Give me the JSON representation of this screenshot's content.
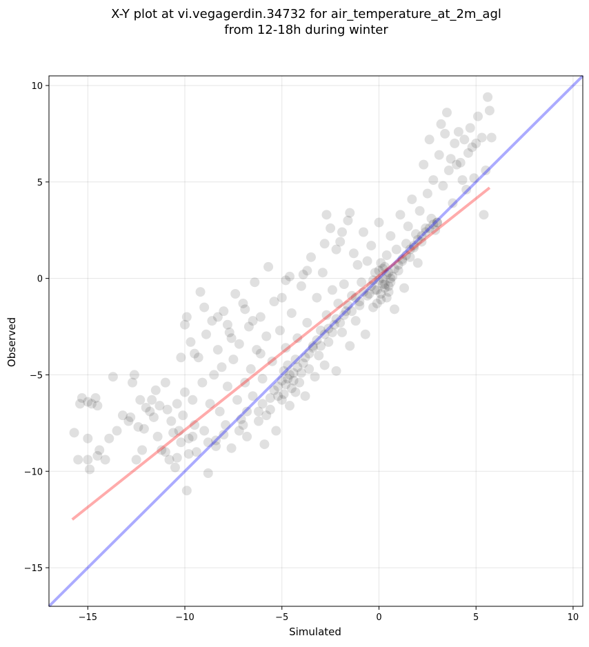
{
  "chart_data": {
    "type": "scatter",
    "title_line1": "X-Y plot at vi.vegagerdin.34732 for air_temperature_at_2m_agl",
    "title_line2": "from 12-18h during winter",
    "xlabel": "Simulated",
    "ylabel": "Observed",
    "xlim": [
      -17,
      10.5
    ],
    "ylim": [
      -17,
      10.5
    ],
    "xticks": [
      -15,
      -10,
      -5,
      0,
      5,
      10
    ],
    "yticks": [
      -15,
      -10,
      -5,
      0,
      5,
      10
    ],
    "xtick_labels": [
      "−15",
      "−10",
      "−5",
      "0",
      "5",
      "10"
    ],
    "ytick_labels": [
      "−15",
      "−10",
      "−5",
      "0",
      "5",
      "10"
    ],
    "grid": true,
    "point_color": "#000000",
    "point_alpha": 0.12,
    "identity_line": {
      "x": [
        -17,
        10.5
      ],
      "y": [
        -17,
        10.5
      ],
      "color": "#0000ff"
    },
    "regression_line": {
      "x": [
        -15.8,
        5.7
      ],
      "y": [
        -12.5,
        4.7
      ],
      "color": "#ff0000"
    },
    "points": [
      [
        -15.7,
        -8.0
      ],
      [
        -15.4,
        -6.5
      ],
      [
        -15.3,
        -6.2
      ],
      [
        -15.0,
        -6.4
      ],
      [
        -14.8,
        -6.5
      ],
      [
        -14.6,
        -6.2
      ],
      [
        -14.5,
        -6.6
      ],
      [
        -15.0,
        -8.3
      ],
      [
        -15.5,
        -9.4
      ],
      [
        -15.0,
        -9.4
      ],
      [
        -14.9,
        -9.9
      ],
      [
        -14.5,
        -9.2
      ],
      [
        -14.4,
        -8.9
      ],
      [
        -14.1,
        -9.4
      ],
      [
        -13.9,
        -8.3
      ],
      [
        -13.7,
        -5.1
      ],
      [
        -13.5,
        -7.9
      ],
      [
        -13.2,
        -7.1
      ],
      [
        -12.9,
        -7.4
      ],
      [
        -12.8,
        -7.2
      ],
      [
        -12.7,
        -5.4
      ],
      [
        -12.6,
        -5.0
      ],
      [
        -12.5,
        -9.4
      ],
      [
        -12.4,
        -7.7
      ],
      [
        -12.3,
        -6.3
      ],
      [
        -12.2,
        -8.9
      ],
      [
        -12.1,
        -7.8
      ],
      [
        -12.0,
        -6.7
      ],
      [
        -11.8,
        -6.9
      ],
      [
        -11.7,
        -6.3
      ],
      [
        -11.6,
        -7.2
      ],
      [
        -11.5,
        -5.8
      ],
      [
        -11.4,
        -8.2
      ],
      [
        -11.3,
        -6.6
      ],
      [
        -11.2,
        -8.9
      ],
      [
        -11.0,
        -5.4
      ],
      [
        -10.9,
        -6.8
      ],
      [
        -10.8,
        -9.4
      ],
      [
        -10.7,
        -7.4
      ],
      [
        -10.6,
        -8.0
      ],
      [
        -10.5,
        -9.8
      ],
      [
        -10.4,
        -6.5
      ],
      [
        -10.3,
        -7.9
      ],
      [
        -10.2,
        -8.5
      ],
      [
        -10.1,
        -7.1
      ],
      [
        -10.0,
        -5.9
      ],
      [
        -9.9,
        -11.0
      ],
      [
        -9.8,
        -8.3
      ],
      [
        -9.7,
        -3.3
      ],
      [
        -9.6,
        -6.3
      ],
      [
        -9.5,
        -7.6
      ],
      [
        -9.4,
        -9.0
      ],
      [
        -9.3,
        -4.1
      ],
      [
        -9.2,
        -0.7
      ],
      [
        -9.1,
        -5.4
      ],
      [
        -9.0,
        -7.9
      ],
      [
        -8.9,
        -2.9
      ],
      [
        -8.8,
        -10.1
      ],
      [
        -8.7,
        -6.5
      ],
      [
        -8.6,
        -2.2
      ],
      [
        -8.5,
        -5.0
      ],
      [
        -8.4,
        -8.4
      ],
      [
        -8.3,
        -3.7
      ],
      [
        -8.2,
        -6.9
      ],
      [
        -8.1,
        -4.6
      ],
      [
        -8.0,
        -1.7
      ],
      [
        -7.9,
        -7.6
      ],
      [
        -7.8,
        -5.6
      ],
      [
        -7.7,
        -2.8
      ],
      [
        -7.6,
        -8.8
      ],
      [
        -7.5,
        -4.2
      ],
      [
        -7.4,
        -0.8
      ],
      [
        -7.3,
        -6.3
      ],
      [
        -7.2,
        -3.4
      ],
      [
        -7.1,
        -7.3
      ],
      [
        -7.0,
        -1.3
      ],
      [
        -6.9,
        -5.4
      ],
      [
        -6.8,
        -8.2
      ],
      [
        -6.7,
        -2.5
      ],
      [
        -6.6,
        -4.7
      ],
      [
        -6.5,
        -6.1
      ],
      [
        -6.4,
        -0.2
      ],
      [
        -6.3,
        -3.7
      ],
      [
        -6.2,
        -7.4
      ],
      [
        -6.1,
        -2.0
      ],
      [
        -6.0,
        -5.2
      ],
      [
        -5.9,
        -8.6
      ],
      [
        -5.8,
        -3.0
      ],
      [
        -5.7,
        0.6
      ],
      [
        -5.6,
        -6.8
      ],
      [
        -5.5,
        -4.3
      ],
      [
        -5.4,
        -1.2
      ],
      [
        -5.3,
        -7.9
      ],
      [
        -5.2,
        -5.6
      ],
      [
        -5.1,
        -2.7
      ],
      [
        -5.0,
        -6.3
      ],
      [
        -4.9,
        -4.8
      ],
      [
        -4.8,
        -3.6
      ],
      [
        -4.7,
        -5.2
      ],
      [
        -4.6,
        -6.6
      ],
      [
        -4.5,
        -1.8
      ],
      [
        -4.4,
        -4.9
      ],
      [
        -4.3,
        -5.9
      ],
      [
        -4.2,
        -3.1
      ],
      [
        -4.1,
        -5.4
      ],
      [
        -4.0,
        -0.4
      ],
      [
        -3.9,
        -4.4
      ],
      [
        -3.8,
        -6.1
      ],
      [
        -3.7,
        -2.3
      ],
      [
        -3.6,
        -4.7
      ],
      [
        -3.5,
        1.1
      ],
      [
        -3.4,
        -3.5
      ],
      [
        -3.3,
        -5.1
      ],
      [
        -3.2,
        -1.0
      ],
      [
        -3.1,
        -4.0
      ],
      [
        -3.0,
        -2.7
      ],
      [
        -2.9,
        0.3
      ],
      [
        -2.8,
        -4.5
      ],
      [
        -2.7,
        -1.9
      ],
      [
        -2.6,
        -3.3
      ],
      [
        -2.5,
        2.6
      ],
      [
        -2.4,
        -0.6
      ],
      [
        -2.3,
        -2.4
      ],
      [
        -2.2,
        -4.8
      ],
      [
        -2.1,
        -1.3
      ],
      [
        -2.0,
        1.9
      ],
      [
        -1.9,
        -2.8
      ],
      [
        -1.8,
        -0.3
      ],
      [
        -1.7,
        -1.7
      ],
      [
        -1.6,
        3.0
      ],
      [
        -1.5,
        -3.5
      ],
      [
        -1.4,
        -0.9
      ],
      [
        -1.3,
        1.3
      ],
      [
        -1.2,
        -2.2
      ],
      [
        -1.1,
        0.7
      ],
      [
        -1.0,
        -1.4
      ],
      [
        -0.9,
        -0.2
      ],
      [
        -0.8,
        2.4
      ],
      [
        -0.7,
        -2.9
      ],
      [
        -0.6,
        0.9
      ],
      [
        -0.5,
        -0.8
      ],
      [
        -0.4,
        1.7
      ],
      [
        -0.3,
        -1.5
      ],
      [
        -0.2,
        0.3
      ],
      [
        -0.1,
        -0.6
      ],
      [
        0.0,
        2.9
      ],
      [
        0.1,
        -1.1
      ],
      [
        0.2,
        0.5
      ],
      [
        0.3,
        -0.3
      ],
      [
        0.4,
        1.2
      ],
      [
        0.5,
        -0.7
      ],
      [
        0.6,
        2.2
      ],
      [
        0.7,
        0.1
      ],
      [
        0.8,
        -1.6
      ],
      [
        0.9,
        1.5
      ],
      [
        1.0,
        0.4
      ],
      [
        1.1,
        3.3
      ],
      [
        1.2,
        0.9
      ],
      [
        1.3,
        -0.5
      ],
      [
        1.4,
        1.8
      ],
      [
        1.5,
        2.7
      ],
      [
        1.6,
        1.1
      ],
      [
        1.7,
        4.1
      ],
      [
        1.8,
        1.6
      ],
      [
        1.9,
        2.3
      ],
      [
        2.0,
        0.8
      ],
      [
        2.1,
        3.5
      ],
      [
        2.2,
        1.9
      ],
      [
        2.3,
        5.9
      ],
      [
        2.4,
        2.6
      ],
      [
        2.5,
        4.4
      ],
      [
        2.6,
        7.2
      ],
      [
        2.7,
        3.1
      ],
      [
        2.8,
        5.1
      ],
      [
        2.9,
        2.5
      ],
      [
        3.0,
        2.9
      ],
      [
        3.1,
        6.4
      ],
      [
        3.2,
        8.0
      ],
      [
        3.3,
        4.8
      ],
      [
        3.4,
        7.5
      ],
      [
        3.5,
        8.6
      ],
      [
        3.6,
        5.6
      ],
      [
        3.7,
        6.2
      ],
      [
        3.8,
        3.9
      ],
      [
        3.9,
        7.0
      ],
      [
        4.0,
        5.9
      ],
      [
        4.1,
        7.6
      ],
      [
        4.2,
        6.0
      ],
      [
        4.3,
        5.1
      ],
      [
        4.4,
        7.2
      ],
      [
        4.5,
        4.6
      ],
      [
        4.6,
        6.5
      ],
      [
        4.7,
        7.8
      ],
      [
        4.8,
        6.8
      ],
      [
        4.9,
        5.2
      ],
      [
        5.0,
        7.0
      ],
      [
        5.1,
        8.4
      ],
      [
        5.3,
        7.3
      ],
      [
        5.4,
        3.3
      ],
      [
        5.5,
        5.6
      ],
      [
        5.6,
        9.4
      ],
      [
        5.7,
        8.7
      ],
      [
        5.8,
        7.3
      ],
      [
        -4.8,
        -5.5
      ],
      [
        -4.6,
        -5.0
      ],
      [
        -4.4,
        -5.3
      ],
      [
        -4.2,
        -4.6
      ],
      [
        -4.0,
        -4.9
      ],
      [
        -3.8,
        -4.1
      ],
      [
        -3.6,
        -3.9
      ],
      [
        -3.4,
        -3.6
      ],
      [
        -3.2,
        -3.2
      ],
      [
        -3.0,
        -3.5
      ],
      [
        -2.8,
        -2.9
      ],
      [
        -2.6,
        -2.6
      ],
      [
        -2.4,
        -2.8
      ],
      [
        -2.2,
        -2.1
      ],
      [
        -2.0,
        -2.3
      ],
      [
        -1.8,
        -1.9
      ],
      [
        -1.6,
        -1.4
      ],
      [
        -1.4,
        -1.7
      ],
      [
        -1.2,
        -1.0
      ],
      [
        -1.0,
        -1.2
      ],
      [
        -0.8,
        -0.7
      ],
      [
        -0.6,
        -0.9
      ],
      [
        -0.4,
        -0.4
      ],
      [
        -0.2,
        -0.6
      ],
      [
        0.0,
        -0.1
      ],
      [
        0.2,
        -0.3
      ],
      [
        0.4,
        0.2
      ],
      [
        0.6,
        0.0
      ],
      [
        0.8,
        0.5
      ],
      [
        1.0,
        0.7
      ],
      [
        1.2,
        1.0
      ],
      [
        1.4,
        1.2
      ],
      [
        1.6,
        1.5
      ],
      [
        1.8,
        1.7
      ],
      [
        2.0,
        2.0
      ],
      [
        2.2,
        2.2
      ],
      [
        2.4,
        2.4
      ],
      [
        2.6,
        2.6
      ],
      [
        2.8,
        2.8
      ],
      [
        3.0,
        2.9
      ],
      [
        0.1,
        -0.8
      ],
      [
        0.3,
        -0.5
      ],
      [
        0.5,
        0.3
      ],
      [
        -0.1,
        -1.3
      ],
      [
        0.0,
        0.4
      ],
      [
        0.2,
        0.0
      ],
      [
        0.4,
        -1.0
      ],
      [
        0.6,
        -0.2
      ],
      [
        -0.3,
        -0.1
      ],
      [
        0.1,
        0.8
      ],
      [
        0.3,
        0.6
      ],
      [
        0.5,
        -0.4
      ],
      [
        -5.4,
        -5.8
      ],
      [
        -5.2,
        -6.1
      ],
      [
        -5.0,
        -5.3
      ],
      [
        -4.9,
        -6.0
      ],
      [
        -4.7,
        -4.5
      ],
      [
        -4.5,
        -5.7
      ],
      [
        -4.3,
        -4.2
      ],
      [
        -6.2,
        -6.9
      ],
      [
        -6.0,
        -6.5
      ],
      [
        -5.8,
        -7.1
      ],
      [
        -5.6,
        -6.2
      ],
      [
        -7.0,
        -7.6
      ],
      [
        -6.8,
        -6.9
      ],
      [
        -7.2,
        -7.9
      ],
      [
        -8.0,
        -8.1
      ],
      [
        -8.4,
        -8.7
      ],
      [
        -8.8,
        -8.5
      ],
      [
        -9.6,
        -8.2
      ],
      [
        -9.8,
        -9.1
      ],
      [
        -10.4,
        -9.3
      ],
      [
        -11.0,
        -9.0
      ],
      [
        -7.6,
        -3.1
      ],
      [
        -6.9,
        -1.6
      ],
      [
        -6.5,
        -2.2
      ],
      [
        -6.1,
        -3.9
      ],
      [
        -7.8,
        -2.4
      ],
      [
        -8.3,
        -2.0
      ],
      [
        -9.0,
        -1.5
      ],
      [
        -9.9,
        -2.0
      ],
      [
        -10.0,
        -2.4
      ],
      [
        -10.2,
        -4.1
      ],
      [
        -9.5,
        -3.9
      ],
      [
        -5.0,
        -1.0
      ],
      [
        -4.8,
        -0.1
      ],
      [
        -4.6,
        0.1
      ],
      [
        -3.9,
        0.2
      ],
      [
        -3.7,
        0.4
      ],
      [
        -2.8,
        1.8
      ],
      [
        -2.2,
        1.5
      ],
      [
        -1.9,
        2.4
      ],
      [
        -1.5,
        3.4
      ],
      [
        -2.7,
        3.3
      ]
    ]
  }
}
